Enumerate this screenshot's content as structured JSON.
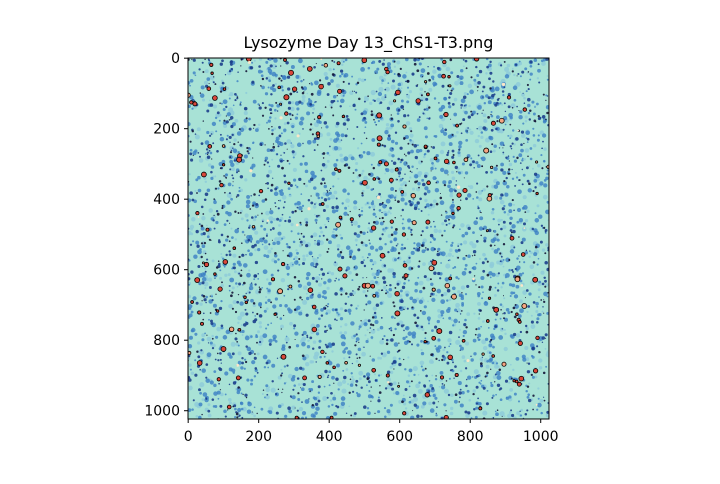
{
  "chart_data": {
    "type": "heatmap",
    "title": "Lysozyme Day 13_ChS1-T3.png",
    "xlabel": "",
    "ylabel": "",
    "xlim": [
      0,
      1023
    ],
    "ylim": [
      1023,
      0
    ],
    "x_ticks": [
      0,
      200,
      400,
      600,
      800,
      1000
    ],
    "y_ticks": [
      0,
      200,
      400,
      600,
      800,
      1000
    ],
    "x_tick_labels": [
      "0",
      "200",
      "400",
      "600",
      "800",
      "1000"
    ],
    "y_tick_labels": [
      "0",
      "200",
      "400",
      "600",
      "800",
      "1000"
    ],
    "image_size": [
      1024,
      1024
    ],
    "colormap": [
      "#a8e2d6",
      "#8ecbd9",
      "#3b7fc4",
      "#1c3f8c",
      "#141637",
      "#d9483b",
      "#f4a582",
      "#fbe6c8"
    ],
    "background_color": "#a8e2d6",
    "contour_color": "#000000",
    "grid": false,
    "legend": "none"
  }
}
